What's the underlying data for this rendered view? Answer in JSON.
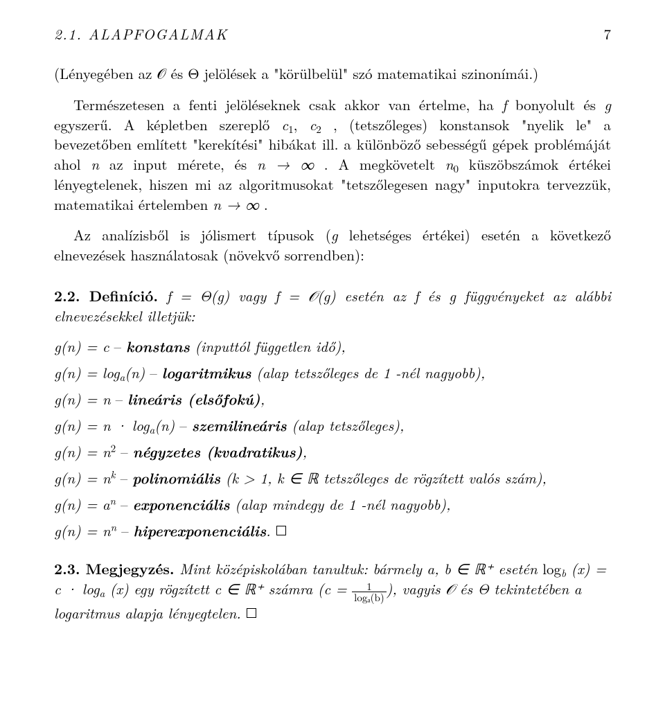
{
  "header": {
    "section": "2.1.  ALAPFOGALMAK",
    "page": "7"
  },
  "p1": "(Lényegében az 𝒪 és Θ jelölések a \"körülbelül\" szó matematikai szinonímái.)",
  "p2_a": "Természetesen a fenti jelöléseknek csak akkor van értelme, ha ",
  "p2_f": "f",
  "p2_b": " bonyolult és ",
  "p2_g": "g",
  "p2_c": " egyszerű. A képletben szereplő ",
  "p2_c1": "c",
  "p2_c1sub": "1",
  "p2_comma": ", ",
  "p2_c2": "c",
  "p2_c2sub": "2",
  "p2_d": " , (tetszőleges) konstansok \"nyelik le\" a bevezetőben említett \"kerekítési\" hibákat ill.  a különböző sebességű gépek problémáját ahol ",
  "p2_n1": "n",
  "p2_e": " az input mérete, és   ",
  "p2_lim1": "n → ∞",
  "p2_f2": " .  A megkövetelt ",
  "p2_n0": "n",
  "p2_n0sub": "0",
  "p2_g2": " küszöb­számok értékei lényegtelenek, hiszen mi az algoritmusokat \"tetszőlegesen nagy\" inputokra tervezzük, matematikai értelemben ",
  "p2_lim2": "n → ∞",
  "p2_h": " .",
  "p3_a": "Az analízisből is jólismert típusok (",
  "p3_g": "g",
  "p3_b": " lehetséges értékei) esetén a következő elnevezések használatosak (növekvő sorrendben):",
  "def_head_a": "2.2. Definíció.",
  "def_head_b1": "  f  =  Θ(g) vagy f  =  𝒪(g) esetén az  f  és g függvényeket az alábbi elnevezésekkel illetjük:",
  "items": [
    {
      "lhs": "g(n) = c",
      "sep": "     –     ",
      "bold": "konstans",
      "rest": " (inputtól független idő),"
    },
    {
      "lhs": "g(n) = logₐ(n)",
      "sep": "     –     ",
      "bold": "logaritmikus",
      "rest": " (alap tetszőleges de 1 -nél nagyobb),"
    },
    {
      "lhs": "g(n) = n",
      "sep": "     –     ",
      "bold": "lineáris (elsőfokú)",
      "rest": ","
    },
    {
      "lhs": "g(n) = n · logₐ(n)",
      "sep": "     –      ",
      "bold": "szemilineáris",
      "rest": "  (alap tetszőleges),"
    },
    {
      "lhs": "g(n) = n²",
      "sep": "     –      ",
      "bold": "négyzetes  (kvadratikus)",
      "rest": ","
    },
    {
      "lhs": "g(n) = nᵏ",
      "sep": "     –    ",
      "bold": "polinomiális",
      "rest": " (k > 1, k ∈ ℝ tetszőleges de rögzített valós szám),"
    },
    {
      "lhs": "g(n) = aⁿ",
      "sep": "     –     ",
      "bold": "exponenciális",
      "rest": " (alap mindegy de 1 -nél nagyobb),"
    },
    {
      "lhs": "g(n) = nⁿ",
      "sep": "     –     ",
      "bold": "hiperexponenciális",
      "rest": "."
    }
  ],
  "rem_head": "2.3. Megjegyzés.",
  "rem_a": "        Mint középiskolában tanultuk:",
  "rem_b": " bármely a, b ∈ ℝ⁺  esetén ",
  "rem_log1": "log",
  "rem_bsub": "b",
  "rem_x1": " (x) = c · log",
  "rem_asub": "a",
  "rem_x2": " (x)",
  "rem_c": "      egy rögzített c ∈ ℝ⁺ számra (c = ",
  "frac_num": "1",
  "frac_den": "logₐ(b)",
  "rem_d": "), vagyis 𝒪 és Θ tekintetében a logaritmus alapja lényegtelen."
}
